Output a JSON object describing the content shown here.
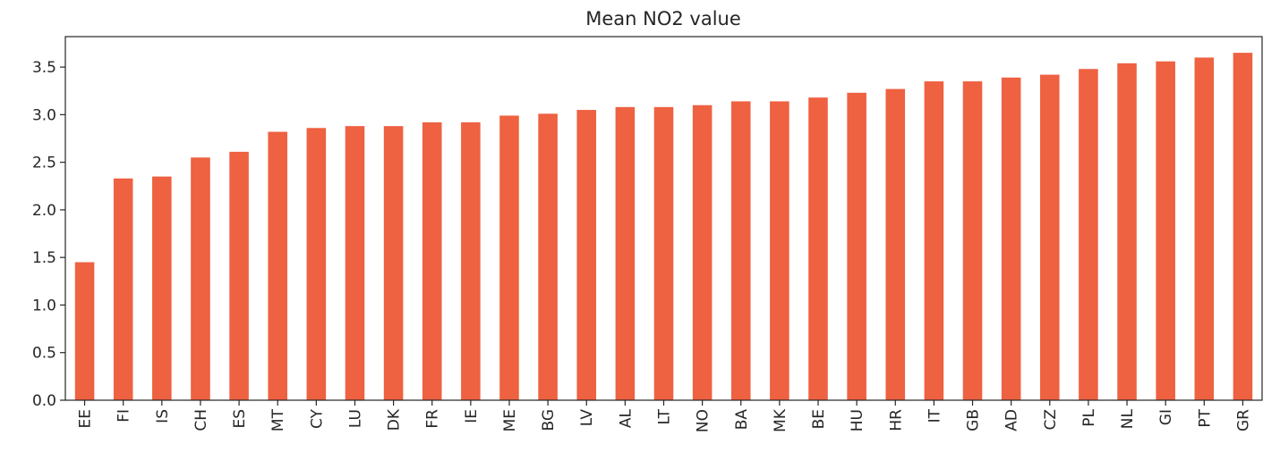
{
  "chart_data": {
    "type": "bar",
    "title": "Mean NO2 value",
    "xlabel": "",
    "ylabel": "",
    "ylim": [
      0,
      3.82
    ],
    "yticks": [
      0.0,
      0.5,
      1.0,
      1.5,
      2.0,
      2.5,
      3.0,
      3.5
    ],
    "ytick_labels": [
      "0.0",
      "0.5",
      "1.0",
      "1.5",
      "2.0",
      "2.5",
      "3.0",
      "3.5"
    ],
    "grid": false,
    "legend": "none",
    "bar_color": "#ee6141",
    "categories": [
      "EE",
      "FI",
      "IS",
      "CH",
      "ES",
      "MT",
      "CY",
      "LU",
      "DK",
      "FR",
      "IE",
      "ME",
      "BG",
      "LV",
      "AL",
      "LT",
      "NO",
      "BA",
      "MK",
      "BE",
      "HU",
      "HR",
      "IT",
      "GB",
      "AD",
      "CZ",
      "PL",
      "NL",
      "GI",
      "PT",
      "GR"
    ],
    "values": [
      1.45,
      2.33,
      2.35,
      2.55,
      2.61,
      2.82,
      2.86,
      2.88,
      2.88,
      2.92,
      2.92,
      2.99,
      3.01,
      3.05,
      3.08,
      3.08,
      3.1,
      3.14,
      3.14,
      3.18,
      3.23,
      3.27,
      3.35,
      3.35,
      3.39,
      3.42,
      3.48,
      3.54,
      3.56,
      3.6,
      3.65
    ]
  }
}
